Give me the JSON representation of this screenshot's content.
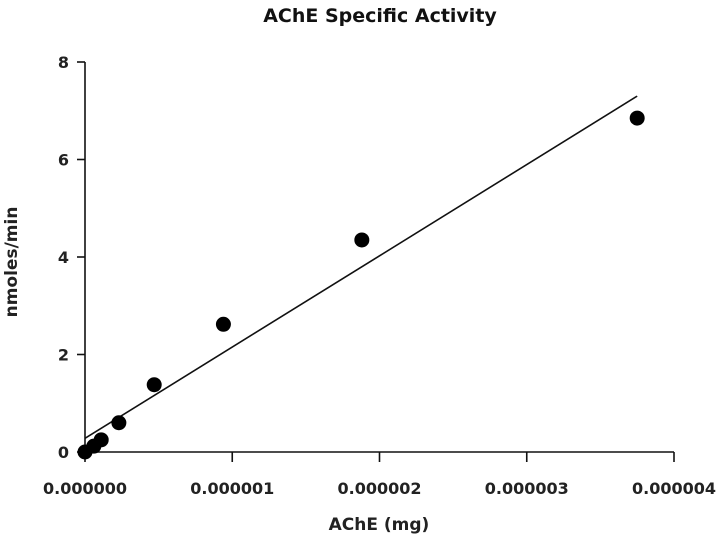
{
  "chart_data": {
    "type": "scatter",
    "title": "AChE Specific Activity",
    "xlabel": "AChE (mg)",
    "ylabel": "nmoles/min",
    "xlim": [
      0,
      4e-06
    ],
    "ylim": [
      0,
      8
    ],
    "x_ticks": [
      "0.000000",
      "0.000001",
      "0.000002",
      "0.000003",
      "0.000004"
    ],
    "x_tick_values": [
      0,
      1e-06,
      2e-06,
      3e-06,
      4e-06
    ],
    "y_ticks": [
      "0",
      "2",
      "4",
      "6",
      "8"
    ],
    "y_tick_values": [
      0,
      2,
      4,
      6,
      8
    ],
    "grid": false,
    "series": [
      {
        "x": [
          0,
          6e-08,
          1.1e-07,
          2.3e-07,
          4.7e-07,
          9.4e-07,
          1.88e-06,
          3.75e-06
        ],
        "y": [
          0.0,
          0.12,
          0.25,
          0.6,
          1.38,
          2.62,
          4.35,
          6.85
        ]
      }
    ],
    "trendline": {
      "x": [
        0,
        3.75e-06
      ],
      "y": [
        0.28,
        7.3
      ]
    }
  }
}
